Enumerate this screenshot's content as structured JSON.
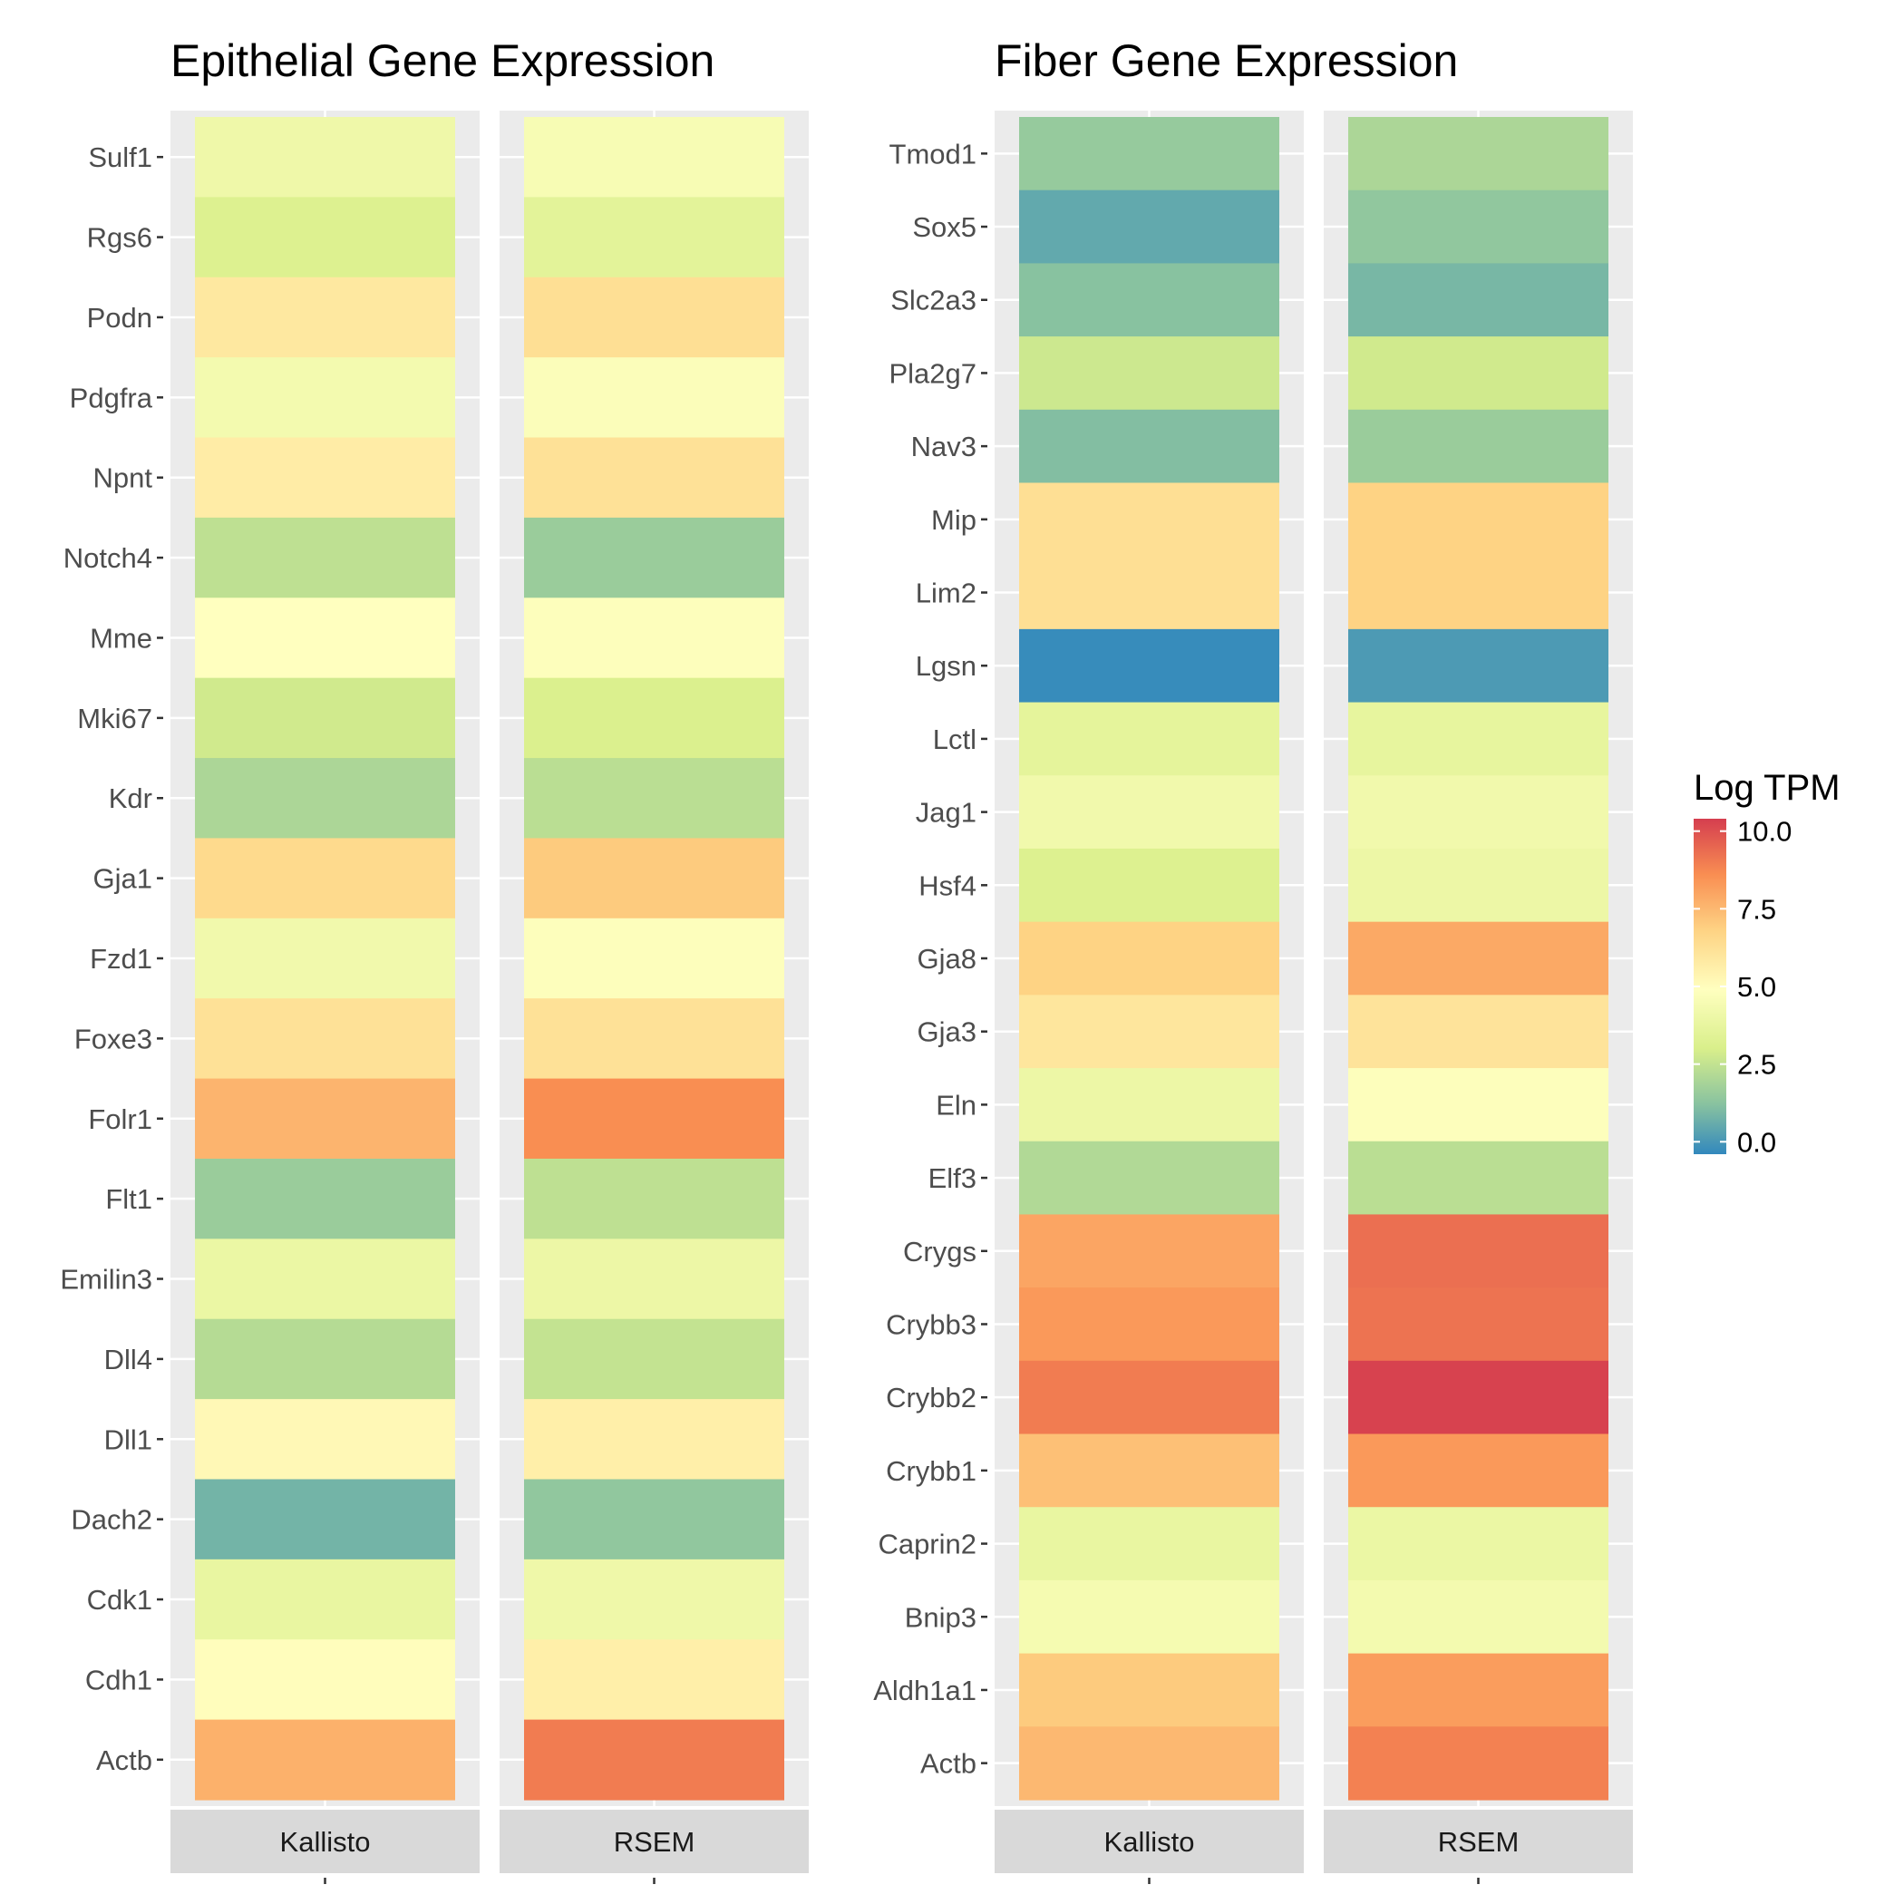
{
  "chart_data": [
    {
      "type": "heatmap",
      "title": "Epithelial Gene Expression",
      "facets": [
        "Kallisto",
        "RSEM"
      ],
      "genes": [
        "Sulf1",
        "Rgs6",
        "Podn",
        "Pdgfra",
        "Npnt",
        "Notch4",
        "Mme",
        "Mki67",
        "Kdr",
        "Gja1",
        "Fzd1",
        "Foxe3",
        "Folr1",
        "Flt1",
        "Emilin3",
        "Dll4",
        "Dll1",
        "Dach2",
        "Cdk1",
        "Cdh1",
        "Actb"
      ],
      "values": {
        "Kallisto": [
          4.1,
          3.2,
          5.9,
          4.3,
          5.7,
          2.4,
          4.9,
          2.8,
          2.0,
          6.5,
          4.2,
          6.2,
          7.6,
          1.6,
          3.9,
          2.2,
          5.2,
          0.8,
          3.8,
          5.0,
          7.7
        ],
        "RSEM": [
          4.5,
          3.5,
          6.3,
          4.7,
          6.2,
          1.6,
          4.8,
          3.1,
          2.3,
          7.0,
          4.8,
          6.2,
          8.6,
          2.4,
          4.0,
          2.5,
          5.6,
          1.4,
          4.1,
          5.6,
          9.0
        ]
      }
    },
    {
      "type": "heatmap",
      "title": "Fiber Gene Expression",
      "facets": [
        "Kallisto",
        "RSEM"
      ],
      "genes": [
        "Tmod1",
        "Sox5",
        "Slc2a3",
        "Pla2g7",
        "Nav3",
        "Mip",
        "Lim2",
        "Lgsn",
        "Lctl",
        "Jag1",
        "Hsf4",
        "Gja8",
        "Gja3",
        "Eln",
        "Elf3",
        "Crygs",
        "Crybb3",
        "Crybb2",
        "Crybb1",
        "Caprin2",
        "Bnip3",
        "Aldh1a1",
        "Actb"
      ],
      "values": {
        "Kallisto": [
          1.5,
          0.5,
          1.2,
          2.7,
          1.1,
          6.3,
          6.3,
          -0.3,
          3.6,
          4.2,
          3.2,
          6.8,
          6.0,
          4.0,
          2.1,
          8.0,
          8.3,
          9.0,
          7.3,
          3.8,
          4.4,
          7.0,
          7.5
        ],
        "RSEM": [
          2.0,
          1.4,
          0.9,
          2.8,
          1.6,
          6.8,
          6.8,
          0.1,
          3.7,
          4.2,
          4.0,
          7.9,
          6.1,
          4.8,
          2.3,
          9.3,
          9.2,
          10.3,
          8.3,
          3.9,
          4.3,
          8.2,
          8.9
        ]
      }
    }
  ],
  "legend": {
    "title": "Log TPM",
    "ticks": [
      10.0,
      7.5,
      5.0,
      2.5,
      0.0
    ],
    "tick_labels": [
      "10.0",
      "7.5",
      "5.0",
      "2.5",
      "0.0"
    ],
    "range": [
      -0.4,
      10.4
    ],
    "color_stops": [
      {
        "value": -0.4,
        "color": "#3288bd"
      },
      {
        "value": 1.2,
        "color": "#88c2a0"
      },
      {
        "value": 3.0,
        "color": "#d9ef8b"
      },
      {
        "value": 4.9,
        "color": "#ffffbf"
      },
      {
        "value": 6.8,
        "color": "#fed384"
      },
      {
        "value": 8.6,
        "color": "#f98e52"
      },
      {
        "value": 10.4,
        "color": "#d53e4f"
      }
    ]
  }
}
